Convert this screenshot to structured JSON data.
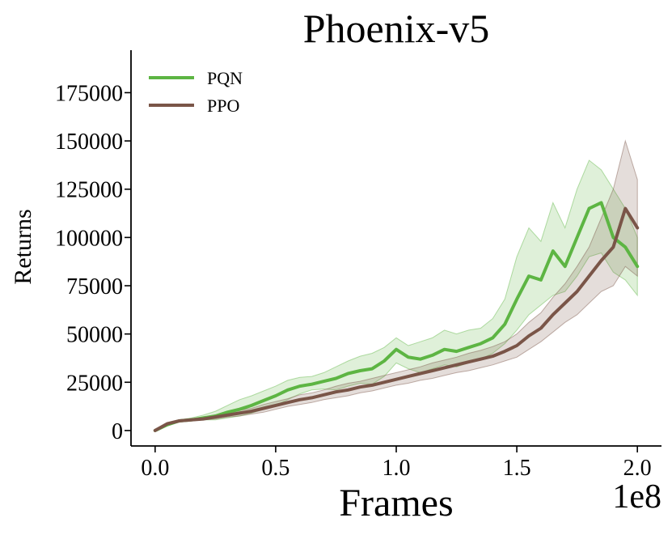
{
  "chart_data": {
    "type": "line",
    "title": "Phoenix-v5",
    "xlabel": "Frames",
    "ylabel": "Returns",
    "x_offset_label": "1e8",
    "xlim": [
      -0.1,
      2.1
    ],
    "ylim": [
      -8000,
      197000
    ],
    "xticks": [
      0.0,
      0.5,
      1.0,
      1.5,
      2.0
    ],
    "xtick_labels": [
      "0.0",
      "0.5",
      "1.0",
      "1.5",
      "2.0"
    ],
    "yticks": [
      0,
      25000,
      50000,
      75000,
      100000,
      125000,
      150000,
      175000
    ],
    "ytick_labels": [
      "0",
      "25000",
      "50000",
      "75000",
      "100000",
      "125000",
      "150000",
      "175000"
    ],
    "grid": false,
    "legend_position": "top-left",
    "series": [
      {
        "name": "PQN",
        "color": "#5db543",
        "x": [
          0.0,
          0.05,
          0.1,
          0.15,
          0.2,
          0.25,
          0.3,
          0.35,
          0.4,
          0.45,
          0.5,
          0.55,
          0.6,
          0.65,
          0.7,
          0.75,
          0.8,
          0.85,
          0.9,
          0.95,
          1.0,
          1.05,
          1.1,
          1.15,
          1.2,
          1.25,
          1.3,
          1.35,
          1.4,
          1.45,
          1.5,
          1.55,
          1.6,
          1.65,
          1.7,
          1.75,
          1.8,
          1.85,
          1.9,
          1.95,
          2.0
        ],
        "mean": [
          0,
          3000,
          5000,
          5500,
          6500,
          7500,
          9500,
          11000,
          13000,
          15500,
          18000,
          21000,
          23000,
          24000,
          25500,
          27000,
          29500,
          31000,
          32000,
          36000,
          42000,
          38000,
          37000,
          39000,
          42000,
          41000,
          43000,
          45000,
          48000,
          55000,
          68000,
          80000,
          78000,
          93000,
          85000,
          100000,
          115000,
          118000,
          100000,
          95000,
          85000
        ],
        "lower": [
          0,
          2500,
          4500,
          5000,
          5500,
          5500,
          6500,
          7500,
          9000,
          11000,
          13000,
          16000,
          19000,
          21000,
          21500,
          21000,
          23000,
          24500,
          24000,
          28000,
          35000,
          32000,
          30000,
          32000,
          34000,
          33000,
          35000,
          37000,
          40000,
          45000,
          52000,
          60000,
          65000,
          70000,
          72000,
          80000,
          90000,
          92000,
          82000,
          78000,
          70000
        ],
        "upper": [
          0,
          3500,
          5500,
          6500,
          8000,
          10000,
          13000,
          16000,
          18000,
          20500,
          23000,
          26000,
          27500,
          28000,
          30000,
          33000,
          36000,
          38500,
          40000,
          43000,
          48000,
          44000,
          46000,
          48000,
          52000,
          50000,
          52000,
          53000,
          58000,
          68000,
          90000,
          105000,
          98000,
          118000,
          105000,
          125000,
          140000,
          135000,
          125000,
          115000,
          100000
        ]
      },
      {
        "name": "PPO",
        "color": "#7a5548",
        "x": [
          0.0,
          0.05,
          0.1,
          0.15,
          0.2,
          0.25,
          0.3,
          0.35,
          0.4,
          0.45,
          0.5,
          0.55,
          0.6,
          0.65,
          0.7,
          0.75,
          0.8,
          0.85,
          0.9,
          0.95,
          1.0,
          1.05,
          1.1,
          1.15,
          1.2,
          1.25,
          1.3,
          1.35,
          1.4,
          1.45,
          1.5,
          1.55,
          1.6,
          1.65,
          1.7,
          1.75,
          1.8,
          1.85,
          1.9,
          1.95,
          2.0
        ],
        "mean": [
          0,
          3500,
          5000,
          5500,
          6000,
          7000,
          8000,
          9000,
          10000,
          11500,
          13000,
          14500,
          16000,
          17000,
          18500,
          20000,
          21000,
          22500,
          23500,
          25000,
          26500,
          28000,
          29500,
          31000,
          32500,
          34000,
          35500,
          37000,
          38500,
          41000,
          44000,
          49000,
          53000,
          60000,
          66000,
          72000,
          80000,
          88000,
          95000,
          115000,
          105000
        ],
        "lower": [
          0,
          3000,
          4500,
          5000,
          5500,
          6000,
          7000,
          7500,
          8500,
          9500,
          11000,
          12500,
          13500,
          14500,
          16000,
          17000,
          18000,
          19500,
          20500,
          22000,
          23500,
          24500,
          26000,
          27000,
          28500,
          30000,
          31000,
          32500,
          34000,
          36000,
          38000,
          42000,
          46000,
          51000,
          56000,
          60000,
          66000,
          72000,
          75000,
          85000,
          80000
        ],
        "upper": [
          0,
          4000,
          5500,
          6000,
          7000,
          8000,
          9500,
          10500,
          11500,
          13500,
          15000,
          16500,
          18500,
          19500,
          21000,
          23000,
          24500,
          25500,
          27000,
          28500,
          30000,
          31500,
          33000,
          35000,
          36500,
          38000,
          40000,
          41500,
          43500,
          46000,
          50000,
          56000,
          61000,
          69000,
          76000,
          85000,
          95000,
          110000,
          125000,
          150000,
          130000
        ]
      }
    ]
  }
}
